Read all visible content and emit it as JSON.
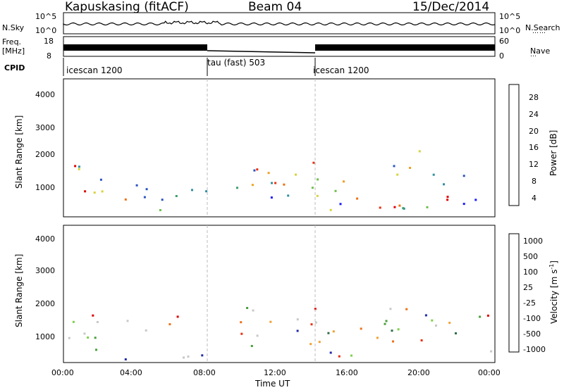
{
  "header": {
    "station": "Kapuskasing (fitACF)",
    "beam": "Beam 04",
    "date": "15/Dec/2014"
  },
  "side_labels": {
    "nsky": "N.Sky",
    "freq": "Freq.",
    "freq_unit": "[MHz]",
    "cpid": "CPID",
    "nsearch": "N.Search",
    "nave": "Nave"
  },
  "noise_axis": {
    "left_ticks": [
      "10^5",
      "10^0"
    ],
    "right_ticks": [
      "10^5",
      "10^0"
    ]
  },
  "freq_axis": {
    "left_ticks": [
      "18",
      "8"
    ],
    "right_ticks": [
      "60",
      "0"
    ]
  },
  "cpid_segments": [
    {
      "name": "icescan 1200",
      "start_hour": 0,
      "end_hour": 8
    },
    {
      "name": "tau (fast) 503",
      "start_hour": 8,
      "end_hour": 14
    },
    {
      "name": "icescan 1200",
      "start_hour": 14,
      "end_hour": 24
    }
  ],
  "chart_data": [
    {
      "type": "heatmap",
      "quantity": "power",
      "ylabel": "Slant Range [km]",
      "xlabel": "",
      "xlim_hours": [
        0,
        24
      ],
      "ylim": [
        180,
        4500
      ],
      "yticks": [
        "1000",
        "2000",
        "3000",
        "4000"
      ],
      "colorbar_label": "Power [dB]",
      "colorbar_ticks": [
        "4",
        "8",
        "12",
        "16",
        "20",
        "24",
        "28"
      ],
      "colorbar_range": [
        0,
        32
      ]
    },
    {
      "type": "heatmap",
      "quantity": "velocity",
      "ylabel": "Slant Range [km]",
      "xlabel": "Time UT",
      "xlim_hours": [
        0,
        24
      ],
      "ylim": [
        180,
        4500
      ],
      "yticks": [
        "1000",
        "2000",
        "3000",
        "4000"
      ],
      "xticks": [
        "00:00",
        "04:00",
        "08:00",
        "12:00",
        "16:00",
        "20:00",
        "00:00"
      ],
      "colorbar_label": "Velocity [m s",
      "colorbar_label_sup": "-1",
      "colorbar_label_end": "]",
      "colorbar_ticks": [
        "1000",
        "500",
        "100",
        "25",
        "-25",
        "-100",
        "-500",
        "-1000"
      ]
    }
  ],
  "colors": {
    "power_scale": [
      "#1a1aff",
      "#2b55c0",
      "#2f8fa0",
      "#3aa069",
      "#6cc04a",
      "#d8d23a",
      "#f0a020",
      "#f07010",
      "#e83010",
      "#e00000"
    ],
    "velocity_scale": [
      "#1e2aa8",
      "#2d6e48",
      "#4aa03c",
      "#7fd04a",
      "#c8c8c8",
      "#c8c8c8",
      "#f0a030",
      "#f07018",
      "#e83010",
      "#e00000"
    ],
    "ground_scatter": "#b8b8b8"
  }
}
